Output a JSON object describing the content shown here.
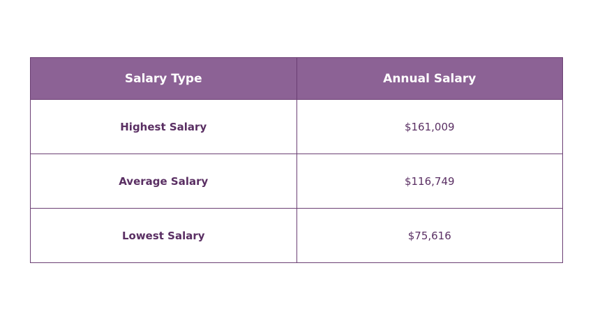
{
  "table": {
    "header": [
      "Salary Type",
      "Annual Salary"
    ],
    "rows": [
      [
        "Highest Salary",
        "$161,009"
      ],
      [
        "Average Salary",
        "$116,749"
      ],
      [
        "Lowest Salary",
        "$75,616"
      ]
    ]
  }
}
